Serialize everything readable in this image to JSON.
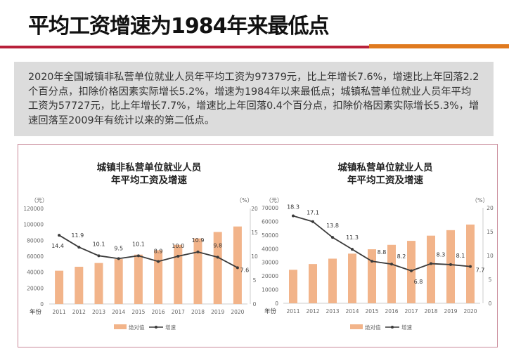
{
  "page": {
    "title": "平均工资增速为1984年来最低点",
    "summary": "2020年全国城镇非私营单位就业人员年平均工资为97379元，比上年增长7.6%，增速比上年回落2.2个百分点，扣除价格因素实际增长5.2%，增速为1984年以来最低点；城镇私营单位就业人员年平均工资为57727元，比上年增长7.7%，增速比上年回落0.4个百分点，扣除价格因素实际增长5.3%，增速回落至2009年有统计以来的第二低点。",
    "colors": {
      "bar": "#f2b48a",
      "line": "#3a3a3a",
      "rule_red": "#b8203a",
      "rule_orange": "#e07a1f"
    }
  },
  "chart_data": [
    {
      "type": "bar+line",
      "title": [
        "城镇非私营单位就业人员",
        "年平均工资及增速"
      ],
      "left_unit": "（元）",
      "right_unit": "（%）",
      "xlabel": "年份",
      "categories": [
        "2011",
        "2012",
        "2013",
        "2014",
        "2015",
        "2016",
        "2017",
        "2018",
        "2019",
        "2020"
      ],
      "left_ylim": [
        0,
        120000
      ],
      "left_ticks": [
        0,
        20000,
        40000,
        60000,
        80000,
        100000,
        120000
      ],
      "right_ylim": [
        0,
        20
      ],
      "right_ticks": [
        0,
        5,
        10,
        15,
        20
      ],
      "series": [
        {
          "name": "绝对值",
          "type": "bar",
          "axis": "left",
          "values": [
            41799,
            46769,
            51483,
            56360,
            62029,
            67569,
            74318,
            82413,
            90501,
            97379
          ]
        },
        {
          "name": "增速",
          "type": "line",
          "axis": "right",
          "values": [
            14.4,
            11.9,
            10.1,
            9.5,
            10.1,
            8.9,
            10.0,
            10.9,
            9.8,
            7.6
          ],
          "labels": [
            "14.4",
            "11.9",
            "10.1",
            "9.5",
            "10.1",
            "8.9",
            "10.0",
            "10.9",
            "9.8",
            "7.6"
          ]
        }
      ],
      "legend": "bottom"
    },
    {
      "type": "bar+line",
      "title": [
        "城镇私营单位就业人员",
        "年平均工资及增速"
      ],
      "left_unit": "（元）",
      "right_unit": "（%）",
      "xlabel": "年份",
      "categories": [
        "2011",
        "2012",
        "2013",
        "2014",
        "2015",
        "2016",
        "2017",
        "2018",
        "2019",
        "2020"
      ],
      "left_ylim": [
        0,
        70000
      ],
      "left_ticks": [
        0,
        10000,
        20000,
        30000,
        40000,
        50000,
        60000,
        70000
      ],
      "right_ylim": [
        0,
        20
      ],
      "right_ticks": [
        0,
        5,
        10,
        15,
        20
      ],
      "series": [
        {
          "name": "绝对值",
          "type": "bar",
          "axis": "left",
          "values": [
            24556,
            28752,
            32706,
            36390,
            39589,
            42833,
            45761,
            49575,
            53604,
            57727
          ]
        },
        {
          "name": "增速",
          "type": "line",
          "axis": "right",
          "values": [
            18.3,
            17.1,
            13.8,
            11.3,
            8.8,
            8.2,
            6.8,
            8.3,
            8.1,
            7.7
          ],
          "labels": [
            "18.3",
            "17.1",
            "13.8",
            "11.3",
            "8.8",
            "8.2",
            "6.8",
            "8.3",
            "8.1",
            "7.7"
          ]
        }
      ],
      "legend": "bottom"
    }
  ]
}
